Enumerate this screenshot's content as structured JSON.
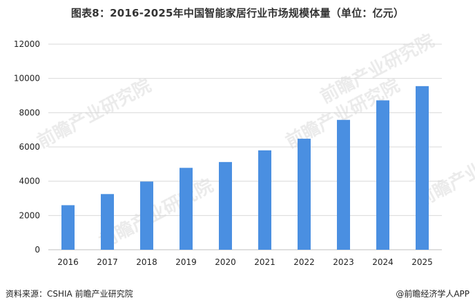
{
  "chart_data": {
    "type": "bar",
    "title": "图表8：2016-2025年中国智能家居行业市场规模体量（单位：亿元）",
    "xlabel": "",
    "ylabel": "",
    "categories": [
      "2016",
      "2017",
      "2018",
      "2019",
      "2020",
      "2021",
      "2022",
      "2023",
      "2024",
      "2025"
    ],
    "values": [
      2600,
      3250,
      3980,
      4780,
      5120,
      5800,
      6480,
      7580,
      8720,
      9550
    ],
    "ylim": [
      0,
      12000
    ],
    "yticks": [
      "0",
      "2000",
      "4000",
      "6000",
      "8000",
      "10000",
      "12000"
    ],
    "grid": true,
    "bar_color": "#4a8fe1"
  },
  "footer": {
    "source": "资料来源：CSHIA  前瞻产业研究院",
    "brand": "@前瞻经济学人APP"
  },
  "watermark": {
    "text": "前瞻产业研究院"
  }
}
